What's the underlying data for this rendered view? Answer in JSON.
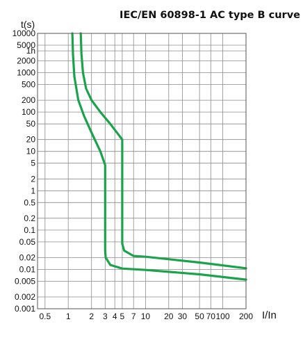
{
  "chart_data": {
    "type": "line",
    "title": "IEC/EN 60898-1 AC type B curve",
    "ylabel": "t(s)",
    "xlabel": "I/In",
    "x_scale": "log",
    "y_scale": "log",
    "xlim": [
      0.4,
      200
    ],
    "ylim": [
      0.001,
      10000
    ],
    "grid": true,
    "x_ticks": [
      {
        "value": 0.5,
        "label": "0.5"
      },
      {
        "value": 1,
        "label": "1"
      },
      {
        "value": 2,
        "label": "2"
      },
      {
        "value": 3,
        "label": "3"
      },
      {
        "value": 4,
        "label": "4"
      },
      {
        "value": 5,
        "label": "5"
      },
      {
        "value": 7,
        "label": "7"
      },
      {
        "value": 10,
        "label": "10"
      },
      {
        "value": 20,
        "label": "20"
      },
      {
        "value": 30,
        "label": "30"
      },
      {
        "value": 50,
        "label": "50"
      },
      {
        "value": 70,
        "label": "70"
      },
      {
        "value": 100,
        "label": "100"
      },
      {
        "value": 200,
        "label": "200"
      }
    ],
    "y_ticks": [
      {
        "value": 10000,
        "label": "10000"
      },
      {
        "value": 5000,
        "label": "5000"
      },
      {
        "value": 3600,
        "label": "1h"
      },
      {
        "value": 2000,
        "label": "2000"
      },
      {
        "value": 1000,
        "label": "1000"
      },
      {
        "value": 500,
        "label": "500"
      },
      {
        "value": 200,
        "label": "200"
      },
      {
        "value": 100,
        "label": "100"
      },
      {
        "value": 50,
        "label": "50"
      },
      {
        "value": 20,
        "label": "20"
      },
      {
        "value": 10,
        "label": "10"
      },
      {
        "value": 5,
        "label": "5"
      },
      {
        "value": 2,
        "label": "2"
      },
      {
        "value": 1,
        "label": "1"
      },
      {
        "value": 0.5,
        "label": "0.5"
      },
      {
        "value": 0.2,
        "label": "0.2"
      },
      {
        "value": 0.1,
        "label": "0.1"
      },
      {
        "value": 0.05,
        "label": "0.05"
      },
      {
        "value": 0.02,
        "label": "0.02"
      },
      {
        "value": 0.01,
        "label": "0.01"
      },
      {
        "value": 0.005,
        "label": "0.005"
      },
      {
        "value": 0.002,
        "label": "0.002"
      },
      {
        "value": 0.001,
        "label": "0.001"
      }
    ],
    "series": [
      {
        "color": "#1aa34a",
        "points": [
          [
            1.13,
            10000
          ],
          [
            1.15,
            3000
          ],
          [
            1.2,
            800
          ],
          [
            1.35,
            200
          ],
          [
            1.6,
            80
          ],
          [
            2.0,
            30
          ],
          [
            2.6,
            10
          ],
          [
            3.0,
            4.5
          ],
          [
            3.0,
            1
          ],
          [
            3.0,
            0.1
          ],
          [
            3.0,
            0.03
          ],
          [
            3.05,
            0.02
          ],
          [
            3.5,
            0.013
          ],
          [
            5,
            0.0105
          ],
          [
            10,
            0.0097
          ],
          [
            50,
            0.0075
          ],
          [
            200,
            0.0055
          ]
        ]
      },
      {
        "color": "#1aa34a",
        "points": [
          [
            1.45,
            10000
          ],
          [
            1.48,
            3000
          ],
          [
            1.55,
            1000
          ],
          [
            1.7,
            400
          ],
          [
            2.0,
            200
          ],
          [
            2.6,
            100
          ],
          [
            3.5,
            50
          ],
          [
            5.0,
            20
          ],
          [
            5.0,
            5
          ],
          [
            5.0,
            1
          ],
          [
            5.0,
            0.1
          ],
          [
            5.0,
            0.045
          ],
          [
            5.3,
            0.03
          ],
          [
            7,
            0.022
          ],
          [
            10,
            0.021
          ],
          [
            50,
            0.015
          ],
          [
            200,
            0.0107
          ]
        ]
      }
    ]
  }
}
